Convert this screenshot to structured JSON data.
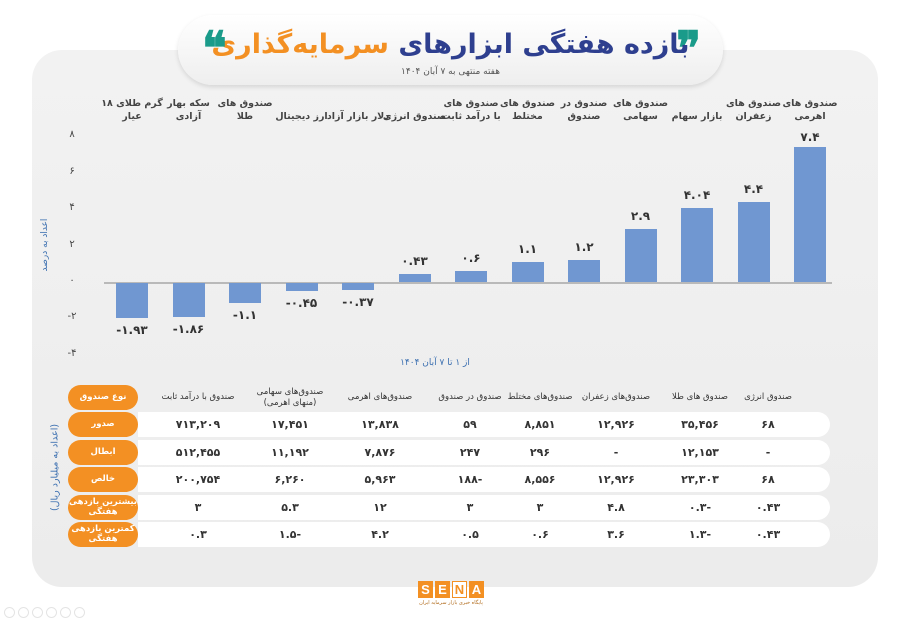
{
  "header": {
    "title_part_blue": "بازده هفتگی ابزارهای",
    "title_part_orange": "سرمایه‌گذاری",
    "subtitle": "هفته منتهی به ۷ آبان ۱۴۰۴",
    "quote_icon_right": "❞",
    "quote_icon_left": "❝"
  },
  "chart_data": {
    "type": "bar",
    "title": "بازده هفتگی ابزارهای سرمایه‌گذاری",
    "subtitle": "هفته منتهی به ۷ آبان ۱۴۰۴",
    "xlabel": "از ۱ تا ۷ آبان ۱۴۰۴",
    "ylabel": "اعداد به درصد",
    "ylim": [
      -4,
      8
    ],
    "yticks": [
      "۸",
      "۶",
      "۴",
      "۲",
      "۰",
      "-۲",
      "-۴"
    ],
    "grid": false,
    "legend": null,
    "categories": [
      "گرم طلای ۱۸ عیار",
      "سکه بهار آزادی",
      "صندوق های طلا",
      "ارز دیجیتال",
      "دلار بازار آزاد",
      "صندوق انرژی",
      "صندوق های با درآمد ثابت",
      "صندوق های مختلط",
      "صندوق در صندوق",
      "صندوق های سهامی",
      "بازار سهام",
      "صندوق های زعفران",
      "صندوق های اهرمی"
    ],
    "values": [
      -1.93,
      -1.86,
      -1.1,
      -0.45,
      -0.37,
      0.43,
      0.6,
      1.1,
      1.2,
      2.9,
      4.04,
      4.4,
      7.4
    ],
    "value_labels": [
      "-۱.۹۳",
      "-۱.۸۶",
      "-۱.۱",
      "-۰.۴۵",
      "-۰.۳۷",
      "۰.۴۳",
      "۰.۶",
      "۱.۱",
      "۱.۲",
      "۲.۹",
      "۴.۰۴",
      "۴.۴",
      "۷.۴"
    ],
    "bar_color": "#7097d1"
  },
  "chart_labels": {
    "lines": [
      [
        "گرم طلای ۱۸",
        "عیار"
      ],
      [
        "سکه بهار",
        "آزادی"
      ],
      [
        "صندوق های",
        "طلا"
      ],
      [
        "",
        "ارز دیجیتال"
      ],
      [
        "",
        "دلار بازار آزاد"
      ],
      [
        "",
        "صندوق انرژی"
      ],
      [
        "صندوق های",
        "با درآمد ثابت"
      ],
      [
        "صندوق های",
        "مختلط"
      ],
      [
        "صندوق در",
        "صندوق"
      ],
      [
        "صندوق های",
        "سهامی"
      ],
      [
        "",
        "بازار سهام"
      ],
      [
        "صندوق های",
        "زعفران"
      ],
      [
        "صندوق های",
        "اهرمی"
      ]
    ]
  },
  "table": {
    "side_label": "(اعداد به میلیارد ریال)",
    "row_header_label": "نوع صندوق",
    "columns": [
      "صندوق با درآمد ثابت",
      "صندوق‌های سهامی (منهای اهرمی)",
      "صندوق‌های اهرمی",
      "صندوق در صندوق",
      "صندوق‌های مختلط",
      "صندوق‌های زعفران",
      "صندوق های طلا",
      "صندوق انرژی"
    ],
    "rows": [
      {
        "label": "صدور",
        "values": [
          "۷۱۳,۲۰۹",
          "۱۷,۴۵۱",
          "۱۳,۸۳۸",
          "۵۹",
          "۸,۸۵۱",
          "۱۲,۹۲۶",
          "۳۵,۴۵۶",
          "۶۸"
        ]
      },
      {
        "label": "ابطال",
        "values": [
          "۵۱۲,۴۵۵",
          "۱۱,۱۹۲",
          "۷,۸۷۶",
          "۲۴۷",
          "۲۹۶",
          "-",
          "۱۲,۱۵۳",
          "-"
        ]
      },
      {
        "label": "خالص",
        "values": [
          "۲۰۰,۷۵۴",
          "۶,۲۶۰",
          "۵,۹۶۳",
          "-۱۸۸",
          "۸,۵۵۶",
          "۱۲,۹۲۶",
          "۲۳,۳۰۳",
          "۶۸"
        ]
      },
      {
        "label": "بیشترین بازدهی هفتگی",
        "values": [
          "۳",
          "۵.۳",
          "۱۲",
          "۳",
          "۳",
          "۴.۸",
          "-۰.۳",
          "۰.۴۳"
        ]
      },
      {
        "label": "کمترین بازدهی هفتگی",
        "values": [
          "۰.۳",
          "-۱.۵",
          "۴.۲",
          "۰.۵",
          "۰.۶",
          "۳.۶",
          "-۱.۳",
          "۰.۴۳"
        ]
      }
    ]
  },
  "footer": {
    "logo_letters": [
      "S",
      "E",
      "N",
      "A"
    ],
    "logo_tagline": "پایگاه خبری بازار سرمایه ایران"
  },
  "colors": {
    "brand_orange": "#f39023",
    "title_blue": "#2e3f8f",
    "quote_teal": "#1a9b8a",
    "bar_blue": "#7097d1",
    "axis_label_blue": "#3b6fb0"
  }
}
